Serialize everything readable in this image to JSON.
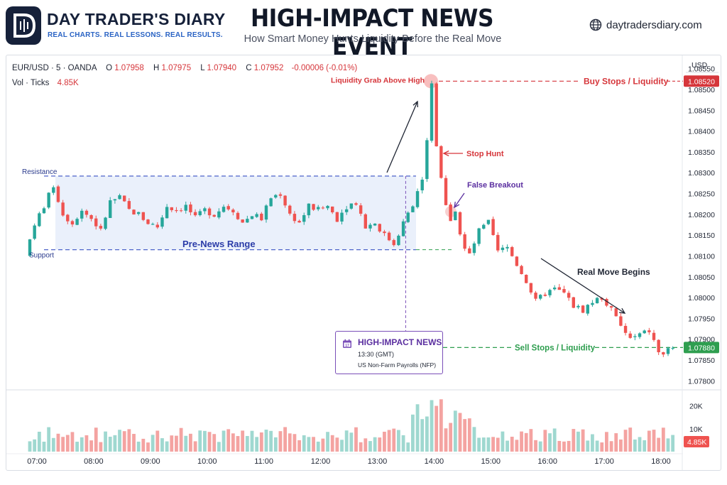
{
  "header": {
    "brand_name": "DAY TRADER'S DIARY",
    "brand_tagline": "REAL CHARTS. REAL LESSONS. REAL RESULTS.",
    "title": "HIGH-IMPACT NEWS EVENT",
    "subtitle": "How Smart Money Hunts Liquidity Before the Real Move",
    "website": "daytradersdiary.com"
  },
  "instrument": {
    "symbol": "EUR/USD · 5 · OANDA",
    "open_label": "O",
    "open": "1.07958",
    "high_label": "H",
    "high": "1.07975",
    "low_label": "L",
    "low": "1.07940",
    "close_label": "C",
    "close": "1.07952",
    "change": "-0.00006 (-0.01%)",
    "volume_label": "Vol · Ticks",
    "volume": "4.85K"
  },
  "colors": {
    "bull": "#26a69a",
    "bear": "#ef5350",
    "buy_stops": "#d6363b",
    "sell_stops": "#2e9e4f",
    "range_fill": "#e8eefb",
    "range_border": "#3b52c4",
    "news": "#7a4fb8"
  },
  "news": {
    "title": "HIGH-IMPACT NEWS",
    "time": "13:30 (GMT)",
    "event": "US Non-Farm Payrolls (NFP)"
  },
  "chart_data": {
    "type": "candlestick",
    "price_axis": {
      "currency": "USD",
      "ticks": [
        "1.08550",
        "1.08500",
        "1.08450",
        "1.08400",
        "1.08350",
        "1.08300",
        "1.08250",
        "1.08200",
        "1.08150",
        "1.08100",
        "1.08050",
        "1.08000",
        "1.07950",
        "1.07900",
        "1.07850",
        "1.07800"
      ],
      "ylim": [
        1.0778,
        1.0857
      ]
    },
    "volume_axis": {
      "ticks": [
        "20K",
        "10K"
      ],
      "current": "4.85K",
      "ylim": [
        0,
        24
      ]
    },
    "time_axis": [
      "07:00",
      "08:00",
      "09:00",
      "10:00",
      "11:00",
      "12:00",
      "13:00",
      "14:00",
      "15:00",
      "16:00",
      "17:00",
      "18:00"
    ],
    "price_labels": {
      "buy_stops": "1.08520",
      "sell_stops": "1.07880"
    },
    "levels": {
      "buy_stops": 1.0852,
      "sell_stops": 1.0788,
      "resistance": 1.08292,
      "support": 1.08115
    },
    "annotations": {
      "resistance": "Resistance",
      "support": "Support",
      "range": "Pre-News Range",
      "liquidity_grab": "Liquidity Grab Above High",
      "buy_stops": "Buy Stops / Liquidity",
      "stop_hunt": "Stop Hunt",
      "false_breakout": "False Breakout",
      "real_move": "Real Move Begins",
      "sell_stops": "Sell Stops / Liquidity"
    },
    "anchors": [
      [
        "06:50",
        1.081
      ],
      [
        "07:00",
        1.0818
      ],
      [
        "07:10",
        1.0822
      ],
      [
        "07:20",
        1.0827
      ],
      [
        "07:30",
        1.082
      ],
      [
        "07:40",
        1.0818
      ],
      [
        "07:50",
        1.0821
      ],
      [
        "08:00",
        1.0819
      ],
      [
        "08:10",
        1.0816
      ],
      [
        "08:20",
        1.0823
      ],
      [
        "08:30",
        1.0824
      ],
      [
        "08:40",
        1.0821
      ],
      [
        "08:50",
        1.082
      ],
      [
        "09:00",
        1.0818
      ],
      [
        "09:10",
        1.0817
      ],
      [
        "09:20",
        1.0822
      ],
      [
        "09:30",
        1.0821
      ],
      [
        "09:40",
        1.0822
      ],
      [
        "09:50",
        1.0819
      ],
      [
        "10:00",
        1.0821
      ],
      [
        "10:10",
        1.082
      ],
      [
        "10:20",
        1.0822
      ],
      [
        "10:30",
        1.0821
      ],
      [
        "10:40",
        1.0818
      ],
      [
        "10:50",
        1.082
      ],
      [
        "11:00",
        1.0819
      ],
      [
        "11:10",
        1.0824
      ],
      [
        "11:20",
        1.0825
      ],
      [
        "11:30",
        1.082
      ],
      [
        "11:40",
        1.0818
      ],
      [
        "11:50",
        1.0822
      ],
      [
        "12:00",
        1.0821
      ],
      [
        "12:10",
        1.0822
      ],
      [
        "12:20",
        1.0819
      ],
      [
        "12:30",
        1.0822
      ],
      [
        "12:40",
        1.0823
      ],
      [
        "12:50",
        1.0817
      ],
      [
        "13:00",
        1.0818
      ],
      [
        "13:10",
        1.0815
      ],
      [
        "13:20",
        1.0813
      ],
      [
        "13:30",
        1.0818
      ],
      [
        "13:40",
        1.0822
      ],
      [
        "13:50",
        1.0829
      ],
      [
        "13:55",
        1.0838
      ],
      [
        "14:00",
        1.0851
      ],
      [
        "14:05",
        1.0837
      ],
      [
        "14:10",
        1.0828
      ],
      [
        "14:15",
        1.0822
      ],
      [
        "14:20",
        1.0818
      ],
      [
        "14:25",
        1.0821
      ],
      [
        "14:30",
        1.0815
      ],
      [
        "14:40",
        1.081
      ],
      [
        "14:50",
        1.0816
      ],
      [
        "15:00",
        1.0818
      ],
      [
        "15:10",
        1.0811
      ],
      [
        "15:20",
        1.0812
      ],
      [
        "15:30",
        1.0808
      ],
      [
        "15:40",
        1.0804
      ],
      [
        "15:50",
        1.0799
      ],
      [
        "16:00",
        1.0801
      ],
      [
        "16:10",
        1.0802
      ],
      [
        "16:20",
        1.0801
      ],
      [
        "16:30",
        1.0798
      ],
      [
        "16:40",
        1.0797
      ],
      [
        "16:50",
        1.0799
      ],
      [
        "17:00",
        1.08
      ],
      [
        "17:10",
        1.0797
      ],
      [
        "17:20",
        1.0793
      ],
      [
        "17:30",
        1.079
      ],
      [
        "17:40",
        1.0791
      ],
      [
        "17:50",
        1.0792
      ],
      [
        "18:00",
        1.0787
      ],
      [
        "18:05",
        1.0786
      ],
      [
        "18:10",
        1.0788
      ]
    ]
  }
}
